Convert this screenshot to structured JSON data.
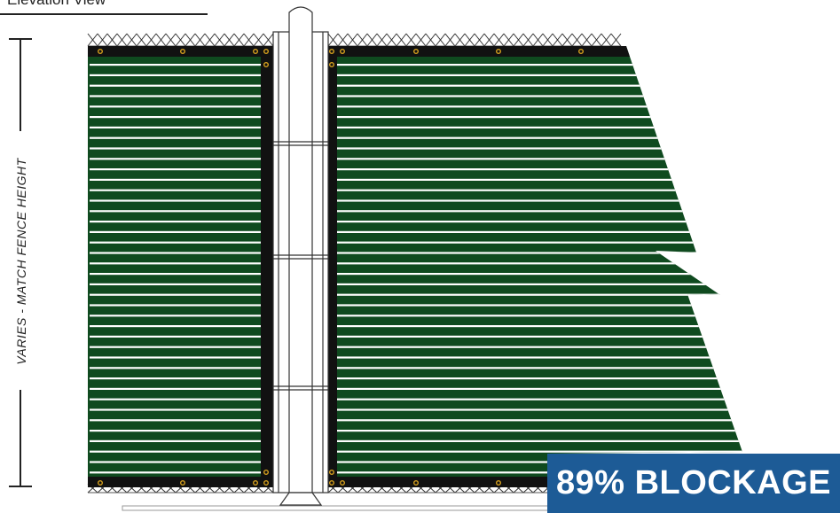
{
  "diagram": {
    "title": "Elevation View",
    "dimension_label": "VARIES - MATCH FENCE HEIGHT",
    "badge_text": "89% BLOCKAGE",
    "colors": {
      "screen": "#0f4a1f",
      "stripe": "#ffffff",
      "hem": "#111111",
      "grommet": "#d8a21e",
      "badge": "#1d5b96",
      "line": "#222222"
    }
  }
}
